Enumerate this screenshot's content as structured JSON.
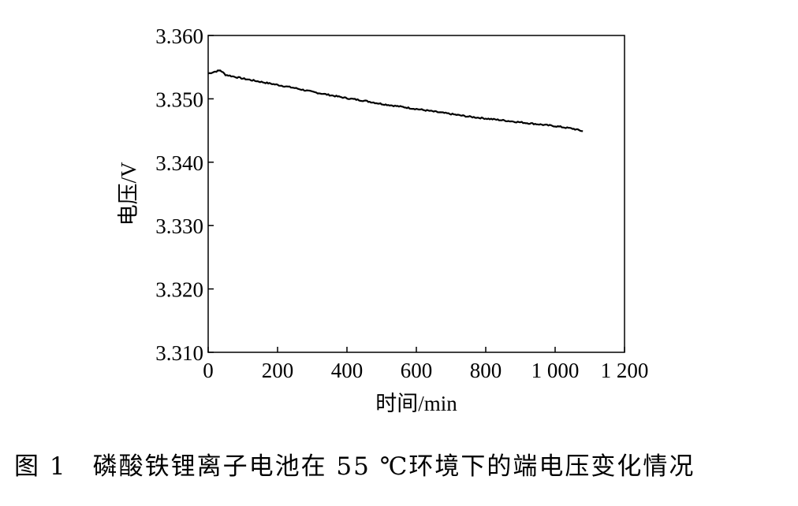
{
  "chart_data": {
    "type": "line",
    "xlabel": "时间/min",
    "ylabel": "电压/V",
    "xlim": [
      0,
      1200
    ],
    "ylim": [
      3.31,
      3.36
    ],
    "x_ticks": [
      0,
      200,
      400,
      600,
      800,
      1000,
      1200
    ],
    "x_tick_labels": [
      "0",
      "200",
      "400",
      "600",
      "800",
      "1 000",
      "1 200"
    ],
    "y_ticks": [
      3.31,
      3.32,
      3.33,
      3.34,
      3.35,
      3.36
    ],
    "y_tick_labels": [
      "3.310",
      "3.320",
      "3.330",
      "3.340",
      "3.350",
      "3.360"
    ],
    "grid": false,
    "series": [
      {
        "color": "#000000",
        "x": [
          0,
          20,
          35,
          50,
          75,
          100,
          150,
          200,
          250,
          300,
          350,
          400,
          450,
          500,
          550,
          600,
          650,
          700,
          750,
          800,
          850,
          900,
          950,
          1000,
          1050,
          1080
        ],
        "y": [
          3.354,
          3.3543,
          3.3545,
          3.3538,
          3.3535,
          3.3532,
          3.3527,
          3.3522,
          3.3517,
          3.3511,
          3.3506,
          3.3501,
          3.3497,
          3.3492,
          3.3488,
          3.3484,
          3.348,
          3.3476,
          3.3472,
          3.3469,
          3.3466,
          3.3463,
          3.346,
          3.3457,
          3.3453,
          3.3449
        ]
      }
    ]
  },
  "caption": "图 1　磷酸铁锂离子电池在 55 ℃环境下的端电压变化情况"
}
